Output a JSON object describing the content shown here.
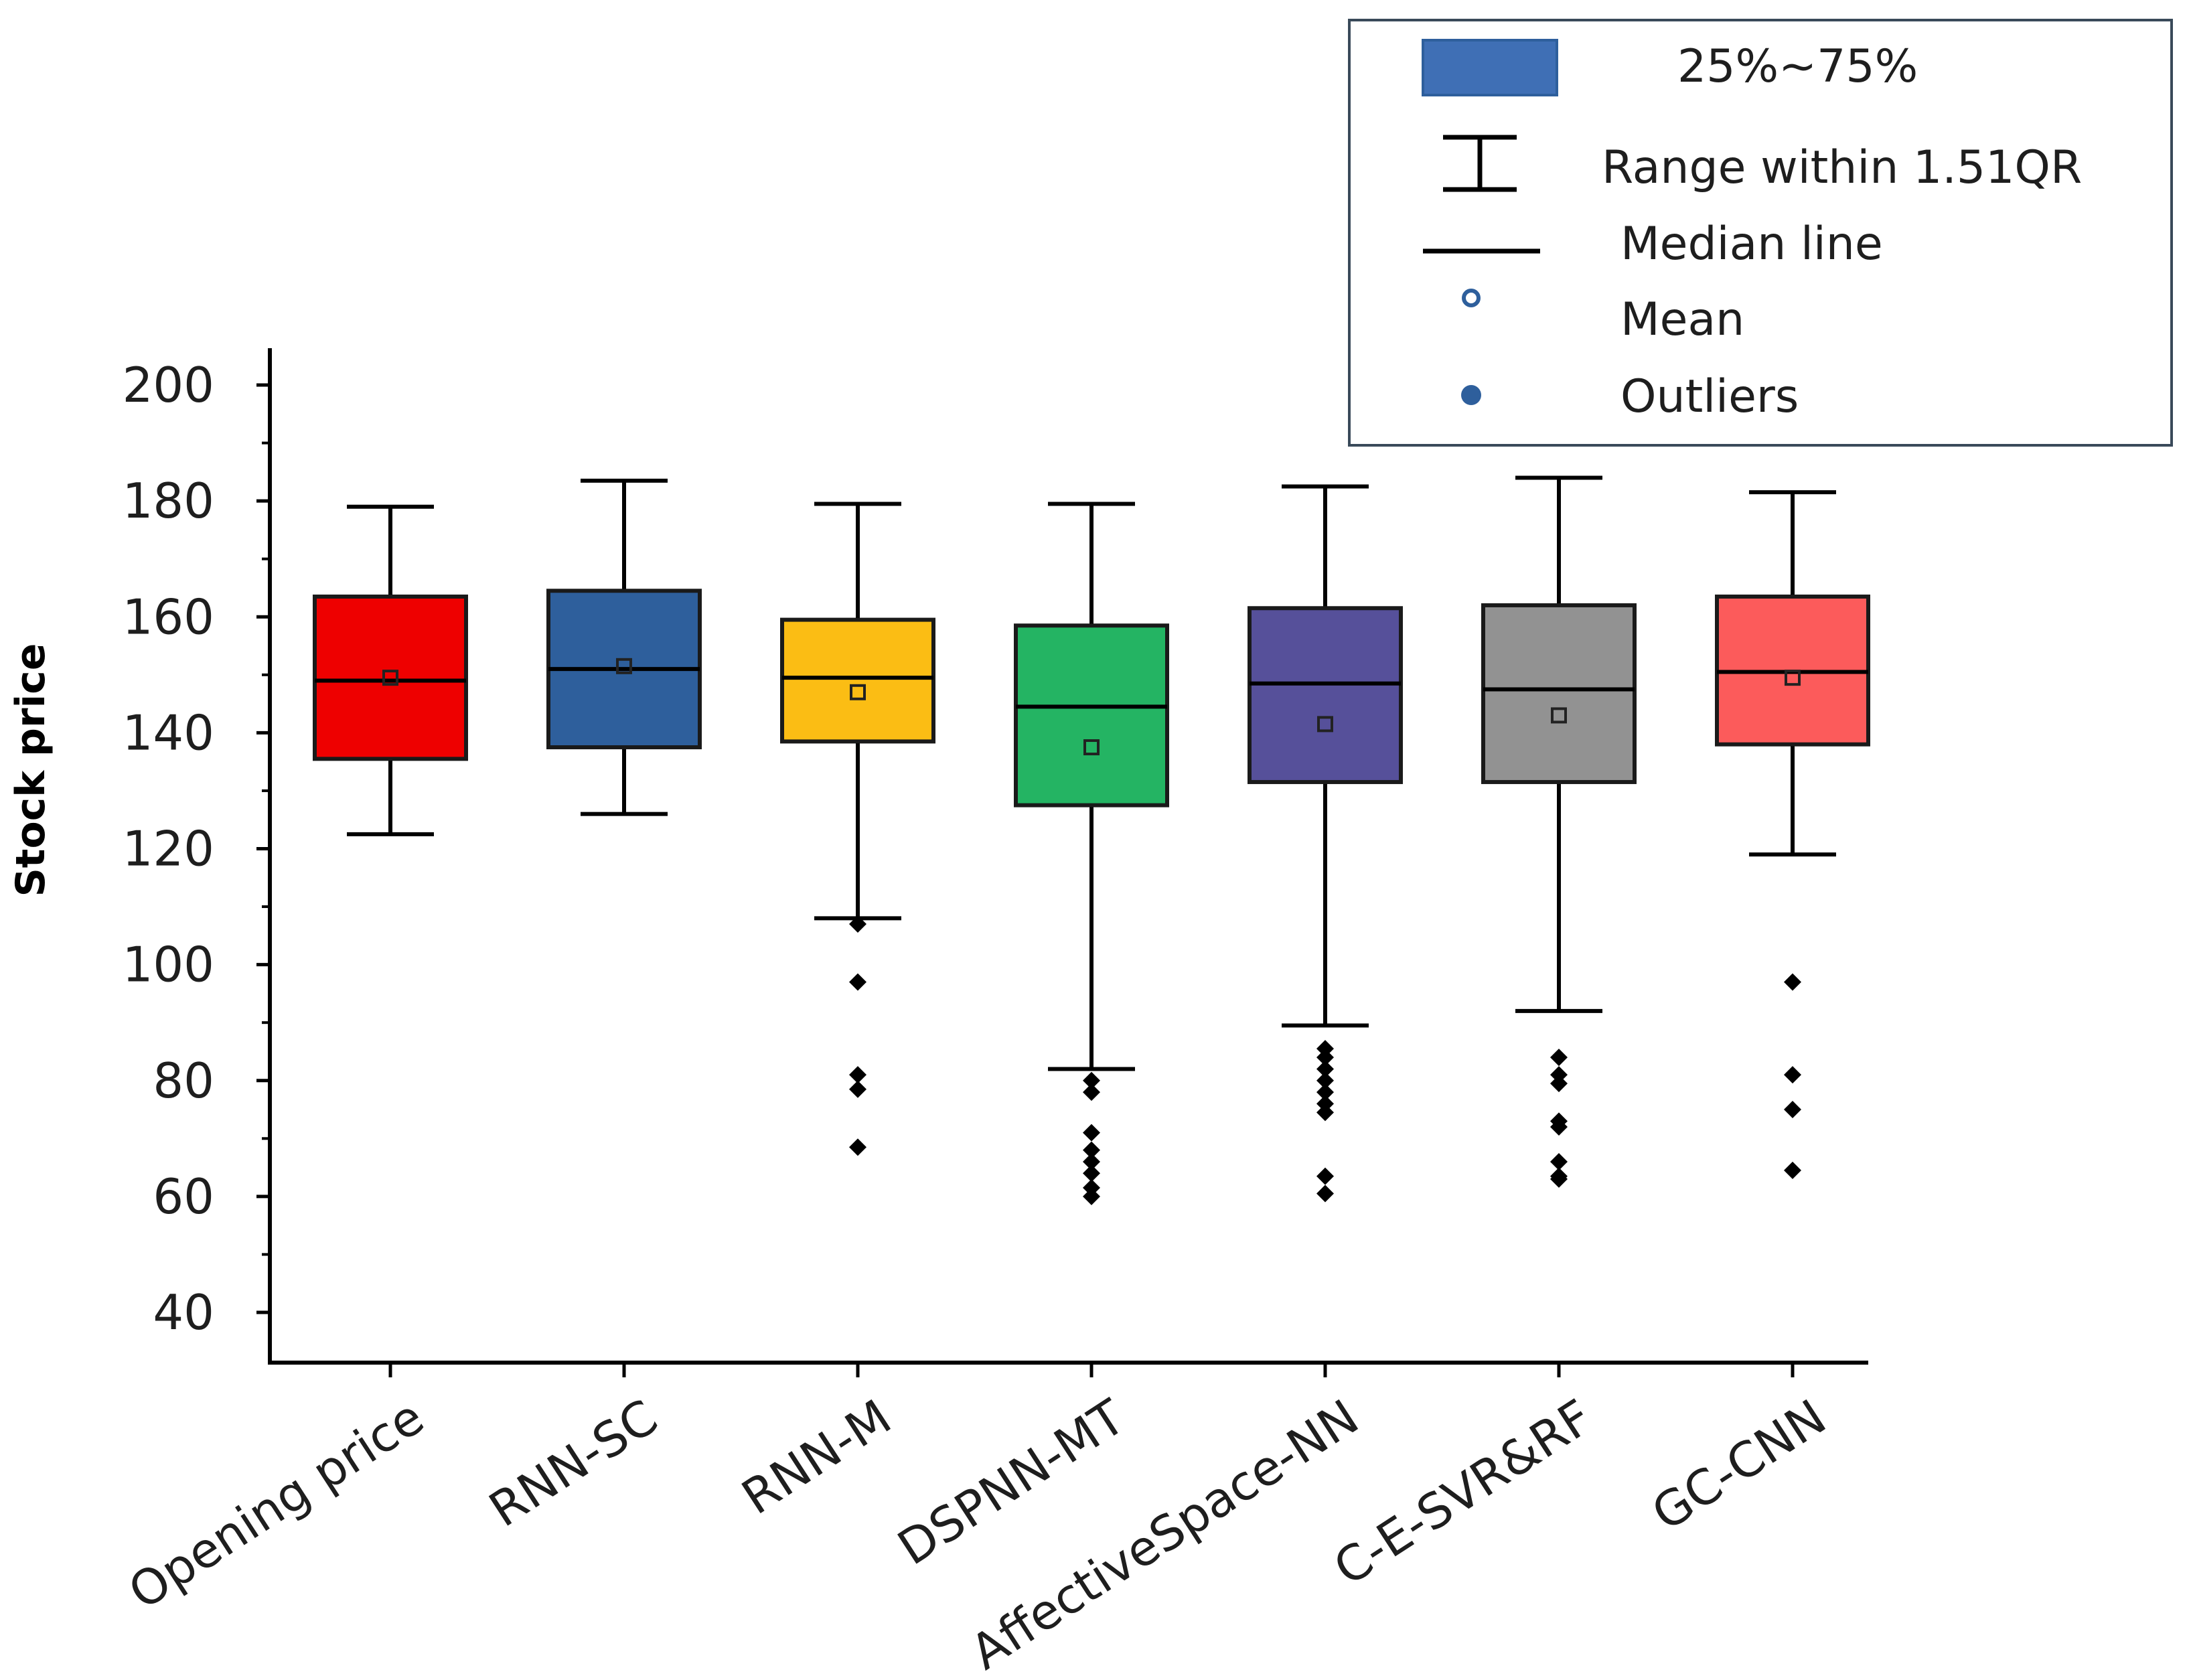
{
  "chart_data": {
    "type": "box",
    "title": "",
    "xlabel": "",
    "ylabel": "Stock price",
    "ylim": [
      32,
      205
    ],
    "yticks": [
      40,
      60,
      80,
      100,
      120,
      140,
      160,
      180,
      200
    ],
    "categories": [
      "Opening price",
      "RNN-SC",
      "RNN-M",
      "DSPNN-MT",
      "AffectiveSpace-NN",
      "C-E-SVR&RF",
      "GC-CNN"
    ],
    "colors": [
      "#ee0000",
      "#2e5f9c",
      "#fbbd14",
      "#24b463",
      "#56509a",
      "#929292",
      "#fc5b5b"
    ],
    "boxes": [
      {
        "name": "Opening price",
        "whisker_low": 122.5,
        "q1": 135.5,
        "median": 149,
        "q3": 163.5,
        "whisker_high": 179,
        "mean": 149.5,
        "outliers": []
      },
      {
        "name": "RNN-SC",
        "whisker_low": 126,
        "q1": 137.5,
        "median": 151,
        "q3": 164.5,
        "whisker_high": 183.5,
        "mean": 151.5,
        "outliers": []
      },
      {
        "name": "RNN-M",
        "whisker_low": 108,
        "q1": 138.5,
        "median": 149.5,
        "q3": 159.5,
        "whisker_high": 179.5,
        "mean": 147,
        "outliers": [
          107,
          97,
          81,
          78.5,
          68.5
        ]
      },
      {
        "name": "DSPNN-MT",
        "whisker_low": 82,
        "q1": 127.5,
        "median": 144.5,
        "q3": 158.5,
        "whisker_high": 179.5,
        "mean": 137.5,
        "outliers": [
          80,
          78,
          71,
          68,
          66,
          64,
          61.5,
          60
        ]
      },
      {
        "name": "AffectiveSpace-NN",
        "whisker_low": 89.5,
        "q1": 131.5,
        "median": 148.5,
        "q3": 161.5,
        "whisker_high": 182.5,
        "mean": 141.5,
        "outliers": [
          85.5,
          84,
          82,
          80,
          78,
          76,
          74.5,
          63.5,
          60.5
        ]
      },
      {
        "name": "C-E-SVR&RF",
        "whisker_low": 92,
        "q1": 131.5,
        "median": 147.5,
        "q3": 162,
        "whisker_high": 184,
        "mean": 143,
        "outliers": [
          84,
          81,
          79.5,
          73,
          72,
          66,
          63.5,
          63
        ]
      },
      {
        "name": "GC-CNN",
        "whisker_low": 119,
        "q1": 138,
        "median": 150.5,
        "q3": 163.5,
        "whisker_high": 181.5,
        "mean": 149.5,
        "outliers": [
          97,
          81,
          75,
          64.5
        ]
      }
    ],
    "legend": {
      "position": "top-right",
      "entries": [
        {
          "symbol": "box",
          "label": "25%~75%"
        },
        {
          "symbol": "whisker",
          "label": "Range within 1.51QR"
        },
        {
          "symbol": "line",
          "label": "Median line"
        },
        {
          "symbol": "hollow-circle",
          "label": "Mean"
        },
        {
          "symbol": "filled-circle",
          "label": "Outliers"
        }
      ]
    }
  }
}
